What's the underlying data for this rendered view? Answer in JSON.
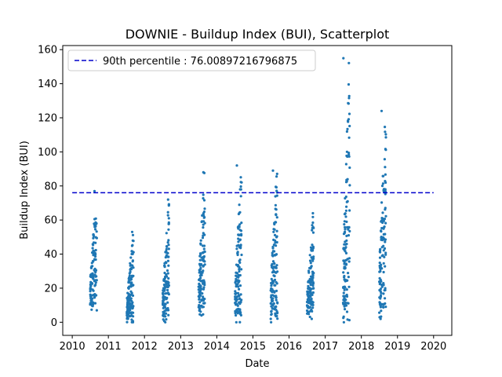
{
  "chart_data": {
    "type": "scatter",
    "title": "DOWNIE - Buildup Index (BUI), Scatterplot",
    "xlabel": "Date",
    "ylabel": "Buildup Index (BUI)",
    "xlim": [
      "2009-09-27",
      "2020-07-03"
    ],
    "ylim": [
      -7.7,
      162.4
    ],
    "x_ticks": [
      "2010",
      "2011",
      "2012",
      "2013",
      "2014",
      "2015",
      "2016",
      "2017",
      "2018",
      "2019",
      "2020"
    ],
    "y_ticks": [
      0,
      20,
      40,
      60,
      80,
      100,
      120,
      140,
      160
    ],
    "grid": false,
    "legend_position": "top-left",
    "reference_line": {
      "label": "90th percentile : 76.00897216796875",
      "value": 76.00897216796875,
      "x_range": [
        "2010-01-01",
        "2020-01-01"
      ],
      "color": "#0000cc",
      "style": "dashed"
    },
    "series": [
      {
        "color": "#1f77b4",
        "seasons": [
          {
            "year": 2010,
            "start": "2010-07-01",
            "end": "2010-09-06",
            "low": 7,
            "high": 77,
            "ramp": 0.65
          },
          {
            "year": 2011,
            "start": "2011-07-07",
            "end": "2011-09-12",
            "low": 0,
            "high": 53,
            "ramp": 0.5
          },
          {
            "year": 2012,
            "start": "2012-07-04",
            "end": "2012-09-06",
            "low": 0,
            "high": 72,
            "ramp": 0.55
          },
          {
            "year": 2013,
            "start": "2013-07-01",
            "end": "2013-09-03",
            "low": 4,
            "high": 88,
            "ramp": 0.6
          },
          {
            "year": 2014,
            "start": "2014-07-04",
            "end": "2014-09-09",
            "low": 0,
            "high": 92,
            "ramp": 0.55
          },
          {
            "year": 2015,
            "start": "2015-06-28",
            "end": "2015-09-06",
            "low": 0,
            "high": 89,
            "ramp": 0.45
          },
          {
            "year": 2016,
            "start": "2016-07-01",
            "end": "2016-09-06",
            "low": 2,
            "high": 64,
            "ramp": 0.3
          },
          {
            "year": 2017,
            "start": "2017-07-01",
            "end": "2017-09-06",
            "low": 0,
            "high": 155,
            "ramp": 1.0
          },
          {
            "year": 2018,
            "start": "2018-07-01",
            "end": "2018-09-06",
            "low": 2,
            "high": 124,
            "ramp": 0.9
          }
        ]
      }
    ]
  }
}
